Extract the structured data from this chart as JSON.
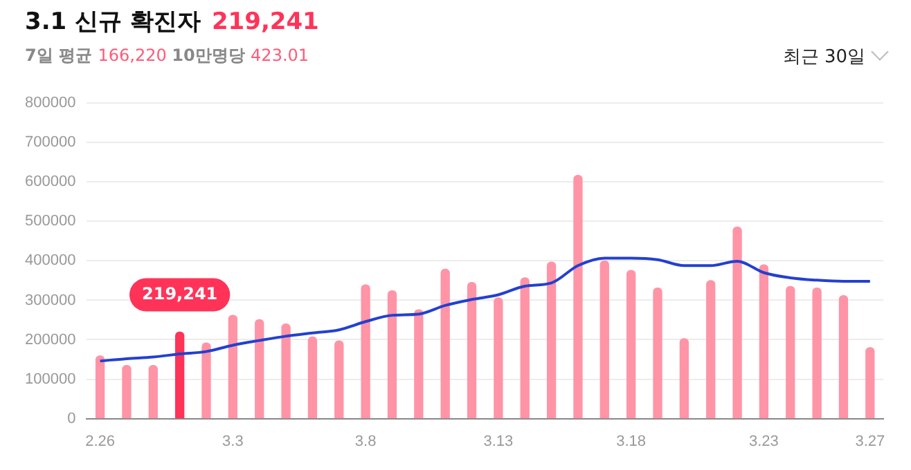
{
  "chart_data": {
    "type": "bar",
    "title": "3.1 신규 확진자",
    "subtitle": "7일 평균 166,220 10만명당 423.01",
    "annotations": [
      "219,241",
      "최근 30일"
    ],
    "categories": [
      "2.26",
      null,
      null,
      null,
      null,
      "3.3",
      null,
      null,
      null,
      null,
      "3.8",
      null,
      null,
      null,
      null,
      "3.13",
      null,
      null,
      null,
      null,
      "3.18",
      null,
      null,
      null,
      null,
      "3.23",
      null,
      null,
      null,
      "3.27"
    ],
    "series": [
      {
        "colors": [
          "#ff94a6",
          "#ff94a6",
          "#ff94a6",
          "#ff3358",
          "#ff94a6",
          "#ff94a6",
          "#ff94a6",
          "#ff94a6",
          "#ff94a6",
          "#ff94a6",
          "#ff94a6",
          "#ff94a6",
          "#ff94a6",
          "#ff94a6",
          "#ff94a6",
          "#ff94a6",
          "#ff94a6",
          "#ff94a6",
          "#ff94a6",
          "#ff94a6",
          "#ff94a6",
          "#ff94a6",
          "#ff94a6",
          "#ff94a6",
          "#ff94a6",
          "#ff94a6",
          "#ff94a6",
          "#ff94a6",
          "#ff94a6",
          "#ff94a6"
        ],
        "values": [
          159000,
          135000,
          135000,
          219241,
          192000,
          262000,
          251000,
          240000,
          207000,
          197000,
          339000,
          324000,
          276000,
          379000,
          345000,
          306000,
          357000,
          397000,
          617000,
          400000,
          376000,
          331000,
          203000,
          350000,
          486000,
          390000,
          335000,
          331000,
          312000,
          180000
        ],
        "value_labels": [
          null,
          null,
          null,
          "219,241",
          null,
          null,
          null,
          null,
          null,
          null,
          null,
          null,
          null,
          null,
          null,
          null,
          null,
          null,
          null,
          null,
          null,
          null,
          null,
          null,
          null,
          null,
          null,
          null,
          null,
          null
        ]
      },
      {
        "type": "line",
        "color": "#2340d0",
        "values": [
          146000,
          152000,
          156000,
          164000,
          170000,
          186000,
          198000,
          209000,
          217000,
          225000,
          246000,
          262000,
          265000,
          287000,
          302000,
          314000,
          336000,
          344000,
          388000,
          407000,
          407000,
          403000,
          388000,
          388000,
          399000,
          370000,
          357000,
          351000,
          348000,
          348000
        ]
      }
    ],
    "ylim": [
      0,
      800000
    ],
    "yticks": [
      0,
      100000,
      200000,
      300000,
      400000,
      500000,
      600000,
      700000,
      800000
    ],
    "grid": "y",
    "legend": false,
    "marker": "none",
    "line_style": "solid"
  }
}
